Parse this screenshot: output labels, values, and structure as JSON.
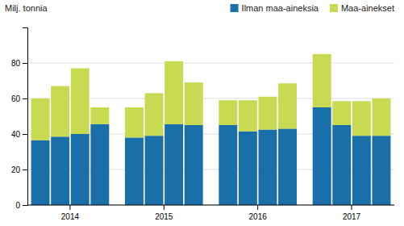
{
  "chart_data": {
    "type": "bar",
    "stacked": true,
    "categories": [
      "2014",
      null,
      null,
      null,
      "2015",
      null,
      null,
      null,
      "2016",
      null,
      null,
      null,
      "2017",
      null,
      null,
      null
    ],
    "series": [
      {
        "name": "Ilman maa-aineksia",
        "color": "#1a6fa8",
        "values": [
          36.5,
          38.5,
          40.0,
          45.5,
          38.0,
          39.0,
          45.5,
          45.0,
          45.0,
          41.5,
          42.5,
          43.0,
          55.0,
          45.0,
          39.0,
          39.0
        ]
      },
      {
        "name": "Maa-ainekset",
        "color": "#c8d952",
        "values": [
          23.5,
          28.5,
          37.0,
          9.5,
          17.0,
          24.0,
          35.5,
          24.0,
          14.0,
          17.5,
          18.5,
          25.5,
          30.0,
          13.5,
          19.5,
          21.0
        ]
      }
    ],
    "y_label": "Milj. tonnia",
    "ylim": [
      0,
      100
    ],
    "yticks": [
      0,
      20,
      40,
      60,
      80
    ],
    "grid": true,
    "legend": "upper right"
  }
}
